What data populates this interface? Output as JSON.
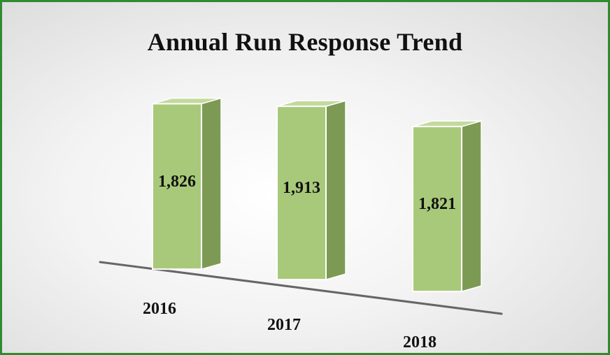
{
  "chart_data": {
    "type": "bar",
    "title": "Annual Run Response Trend",
    "categories": [
      "2016",
      "2017",
      "2018"
    ],
    "values": [
      1826,
      1913,
      1821
    ],
    "data_labels": [
      "1,826",
      "1,913",
      "1,821"
    ],
    "xlabel": "",
    "ylabel": "",
    "grid": false,
    "legend": "none",
    "style": "3d-column"
  },
  "colors": {
    "bar_front": "#a9c97a",
    "bar_side": "#7d9a55",
    "bar_top": "#c3da9d",
    "axis": "#666666",
    "border": "#2e8b2e"
  }
}
